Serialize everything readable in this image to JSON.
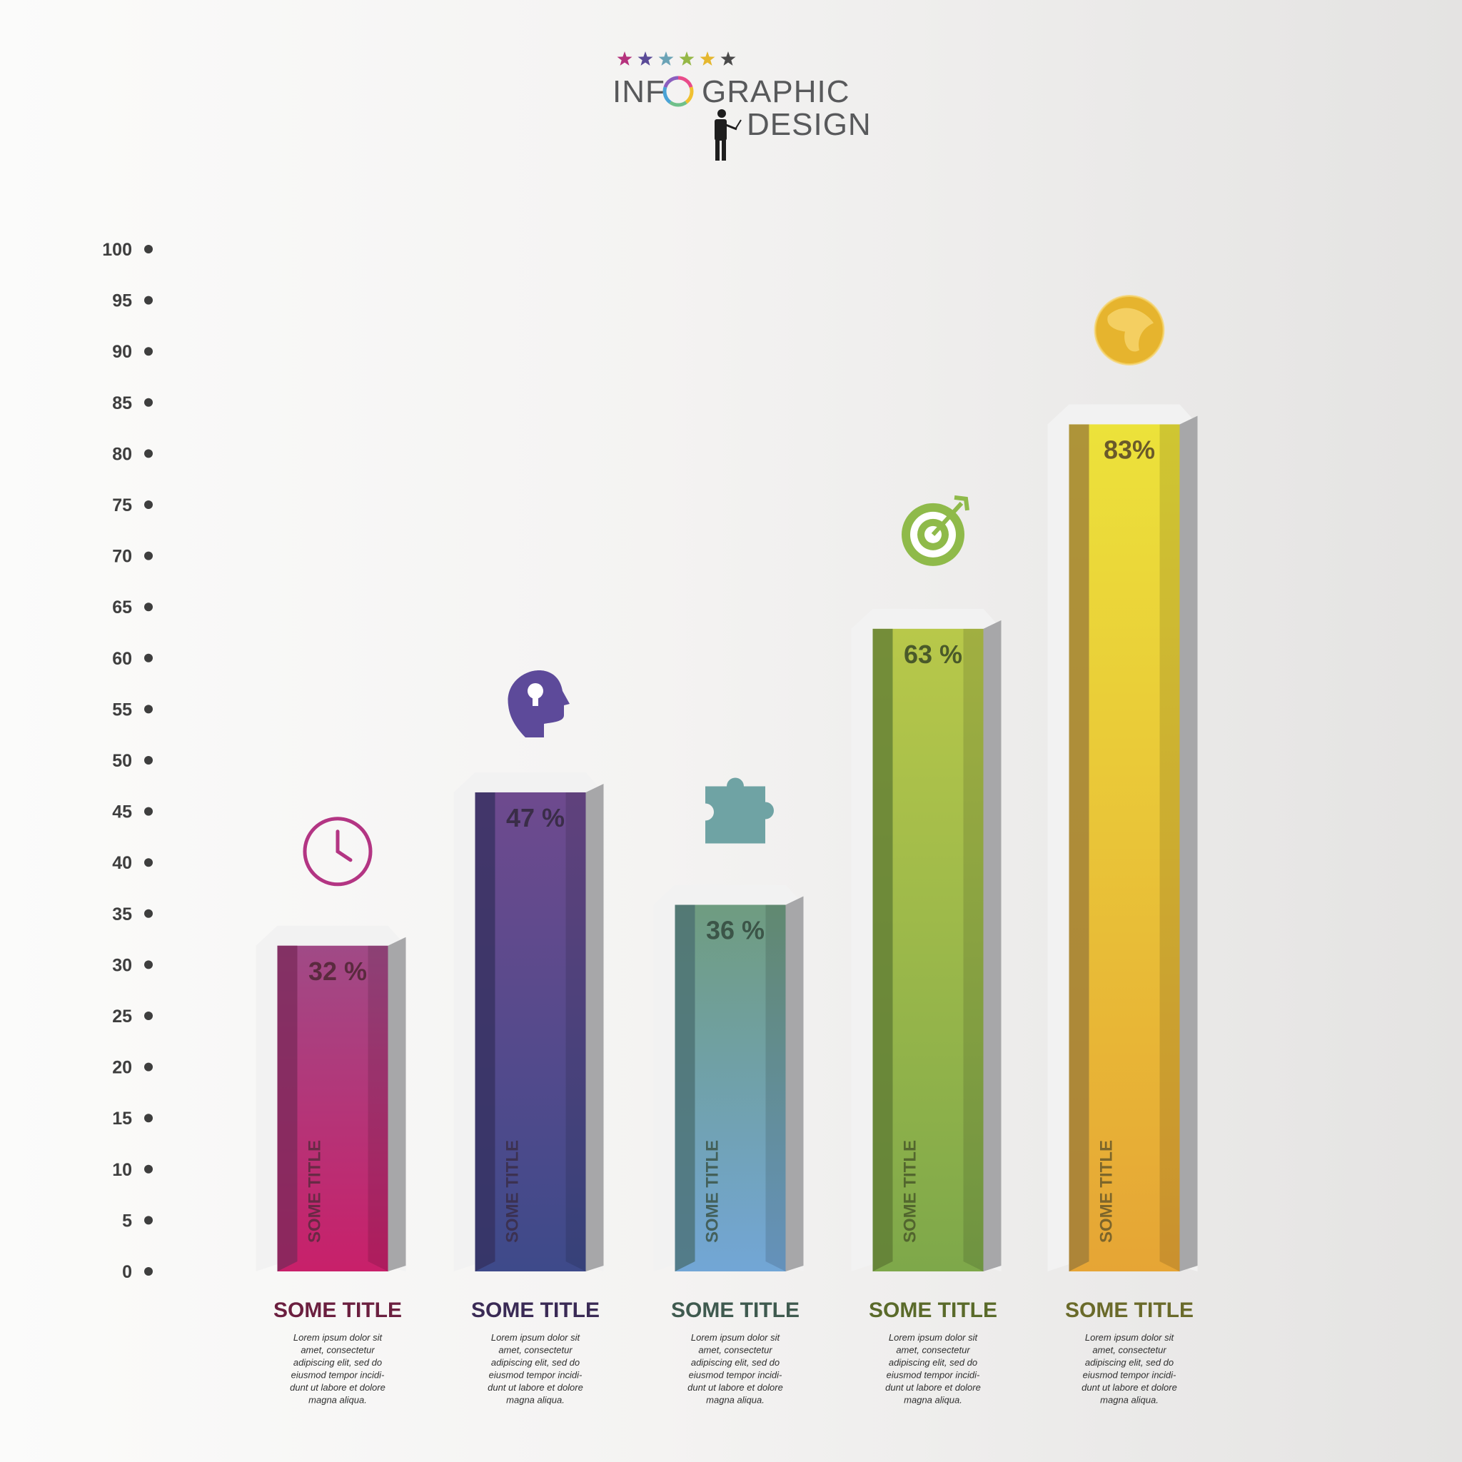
{
  "header": {
    "title_left": "INF",
    "title_right": "GRAPHIC",
    "subtitle": "DESIGN",
    "stars": [
      "#b5327d",
      "#5a4a97",
      "#6aa3b6",
      "#95b746",
      "#e5b72f",
      "#4a4a4a"
    ],
    "ring_colors": [
      "#e94b8a",
      "#f0c030",
      "#6fc08a",
      "#4aa3d6",
      "#8b5fbf"
    ],
    "person_icon": "presenter-icon"
  },
  "chart_data": {
    "type": "bar",
    "categories": [
      "SOME TITLE",
      "SOME TITLE",
      "SOME TITLE",
      "SOME TITLE",
      "SOME TITLE"
    ],
    "values": [
      32,
      47,
      36,
      63,
      83
    ],
    "value_labels": [
      "32 %",
      "47 %",
      "36 %",
      "63 %",
      "83%"
    ],
    "inner_labels": [
      "SOME TITLE",
      "SOME TITLE",
      "SOME TITLE",
      "SOME TITLE",
      "SOME TITLE"
    ],
    "ylim": [
      0,
      100
    ],
    "yticks": [
      0,
      5,
      10,
      15,
      20,
      25,
      30,
      35,
      40,
      45,
      50,
      55,
      60,
      65,
      70,
      75,
      80,
      85,
      90,
      95,
      100
    ],
    "icons": [
      "clock-icon",
      "head-lightbulb-icon",
      "puzzle-icon",
      "target-icon",
      "globe-icon"
    ],
    "colors": [
      {
        "top": "#a04a86",
        "bottom": "#c8206a",
        "left": "#7a2a5a",
        "title": "#6b1f3f",
        "label": "#5a2a3e"
      },
      {
        "top": "#6e4a8e",
        "bottom": "#3e4a8a",
        "left": "#34305e",
        "title": "#3a2a55",
        "label": "#3a2d48"
      },
      {
        "top": "#6f9c80",
        "bottom": "#72a6d6",
        "left": "#4a6e70",
        "title": "#3f5a4f",
        "label": "#3c5548"
      },
      {
        "top": "#b8c84a",
        "bottom": "#7ea84a",
        "left": "#5d7a34",
        "title": "#5a6a2a",
        "label": "#4a5a2a"
      },
      {
        "top": "#ece23a",
        "bottom": "#e6a535",
        "left": "#9a7a3a",
        "title": "#6a6a2a",
        "label": "#6a5a2a"
      }
    ],
    "descriptions": [
      [
        "Lorem ipsum dolor sit",
        "amet, consectetur",
        "adipiscing elit, sed do",
        "eiusmod tempor incidi-",
        "dunt ut labore et dolore",
        "magna aliqua."
      ],
      [
        "Lorem ipsum dolor sit",
        "amet, consectetur",
        "adipiscing elit, sed do",
        "eiusmod tempor incidi-",
        "dunt ut labore et dolore",
        "magna aliqua."
      ],
      [
        "Lorem ipsum dolor sit",
        "amet, consectetur",
        "adipiscing elit, sed do",
        "eiusmod tempor incidi-",
        "dunt ut labore et dolore",
        "magna aliqua."
      ],
      [
        "Lorem ipsum dolor sit",
        "amet, consectetur",
        "adipiscing elit, sed do",
        "eiusmod tempor incidi-",
        "dunt ut labore et dolore",
        "magna aliqua."
      ],
      [
        "Lorem ipsum dolor sit",
        "amet, consectetur",
        "adipiscing elit, sed do",
        "eiusmod tempor incidi-",
        "dunt ut labore et dolore",
        "magna aliqua."
      ]
    ]
  }
}
